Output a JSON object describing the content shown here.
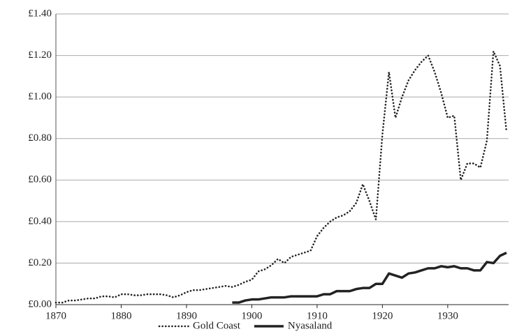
{
  "chart_data": {
    "type": "line",
    "x": [
      1870,
      1871,
      1872,
      1873,
      1874,
      1875,
      1876,
      1877,
      1878,
      1879,
      1880,
      1881,
      1882,
      1883,
      1884,
      1885,
      1886,
      1887,
      1888,
      1889,
      1890,
      1891,
      1892,
      1893,
      1894,
      1895,
      1896,
      1897,
      1898,
      1899,
      1900,
      1901,
      1902,
      1903,
      1904,
      1905,
      1906,
      1907,
      1908,
      1909,
      1910,
      1911,
      1912,
      1913,
      1914,
      1915,
      1916,
      1917,
      1918,
      1919,
      1920,
      1921,
      1922,
      1923,
      1924,
      1925,
      1926,
      1927,
      1928,
      1929,
      1930,
      1931,
      1932,
      1933,
      1934,
      1935,
      1936,
      1937,
      1938,
      1939
    ],
    "series": [
      {
        "name": "Gold Coast",
        "color": "#222222",
        "dash": "dotted",
        "values": [
          0.01,
          0.01,
          0.02,
          0.02,
          0.025,
          0.03,
          0.03,
          0.04,
          0.04,
          0.035,
          0.05,
          0.05,
          0.045,
          0.045,
          0.05,
          0.05,
          0.05,
          0.045,
          0.035,
          0.045,
          0.06,
          0.07,
          0.07,
          0.075,
          0.08,
          0.085,
          0.09,
          0.085,
          0.095,
          0.11,
          0.12,
          0.16,
          0.17,
          0.19,
          0.22,
          0.2,
          0.23,
          0.24,
          0.25,
          0.26,
          0.33,
          0.37,
          0.4,
          0.42,
          0.43,
          0.45,
          0.49,
          0.58,
          0.5,
          0.41,
          0.82,
          1.12,
          0.9,
          1.0,
          1.08,
          1.13,
          1.17,
          1.2,
          1.12,
          1.02,
          0.9,
          0.91,
          0.6,
          0.68,
          0.68,
          0.66,
          0.79,
          1.22,
          1.15,
          0.83
        ]
      },
      {
        "name": "Nyasaland",
        "color": "#222222",
        "dash": "solid",
        "values": [
          null,
          null,
          null,
          null,
          null,
          null,
          null,
          null,
          null,
          null,
          null,
          null,
          null,
          null,
          null,
          null,
          null,
          null,
          null,
          null,
          null,
          null,
          null,
          null,
          null,
          null,
          null,
          0.01,
          0.01,
          0.02,
          0.025,
          0.025,
          0.03,
          0.035,
          0.035,
          0.035,
          0.04,
          0.04,
          0.04,
          0.04,
          0.04,
          0.05,
          0.05,
          0.065,
          0.065,
          0.065,
          0.075,
          0.08,
          0.08,
          0.1,
          0.1,
          0.15,
          0.14,
          0.13,
          0.15,
          0.155,
          0.165,
          0.175,
          0.175,
          0.185,
          0.18,
          0.185,
          0.175,
          0.175,
          0.165,
          0.165,
          0.205,
          0.2,
          0.235,
          0.25
        ]
      }
    ],
    "xlim": [
      1870,
      1939
    ],
    "xticks": [
      1870,
      1880,
      1890,
      1900,
      1910,
      1920,
      1930
    ],
    "ylim": [
      0,
      1.4
    ],
    "yticks": [
      {
        "value": 0,
        "label": "£0.00"
      },
      {
        "value": 0.2,
        "label": "£0.20"
      },
      {
        "value": 0.4,
        "label": "£0.40"
      },
      {
        "value": 0.6,
        "label": "£0.60"
      },
      {
        "value": 0.8,
        "label": "£0.80"
      },
      {
        "value": 1.0,
        "label": "£1.00"
      },
      {
        "value": 1.2,
        "label": "£1.20"
      },
      {
        "value": 1.4,
        "label": "£1.40"
      }
    ],
    "grid": true,
    "legend": "bottom"
  }
}
